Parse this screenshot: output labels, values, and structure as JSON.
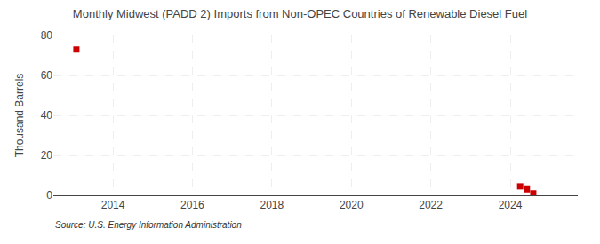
{
  "chart_data": {
    "type": "scatter",
    "title": "Monthly Midwest (PADD 2) Imports from Non-OPEC Countries of Renewable Diesel Fuel",
    "ylabel": "Thousand Barrels",
    "annotations": [
      "Source: U.S. Energy Information Administration"
    ],
    "x": [
      2013.08,
      2024.25,
      2024.42,
      2024.58
    ],
    "values": [
      73.0,
      4.5,
      3.0,
      1.0
    ],
    "color": "#cc0000",
    "marker": "square",
    "xlim": [
      2012.5,
      2025.7
    ],
    "ylim": [
      0,
      80
    ],
    "xticks": [
      2014,
      2016,
      2018,
      2020,
      2022,
      2024
    ],
    "yticks": [
      0,
      20,
      40,
      60,
      80
    ],
    "grid": true
  }
}
